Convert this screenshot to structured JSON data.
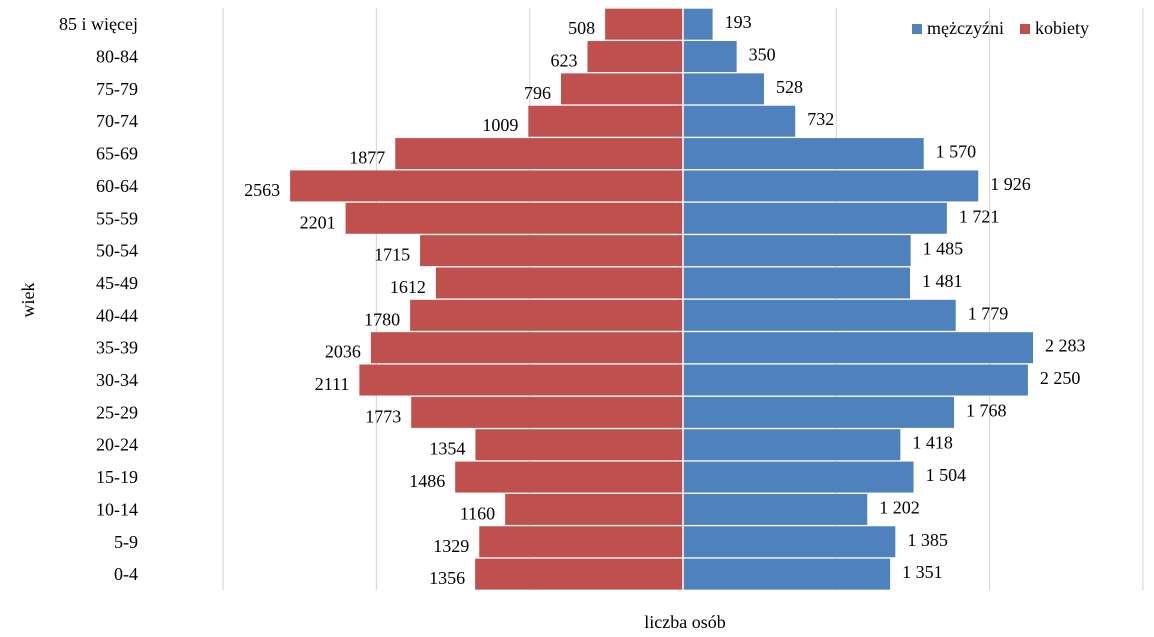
{
  "chart_data": {
    "type": "bar",
    "orientation": "horizontal",
    "layout": "population-pyramid",
    "xlabel": "liczba osób",
    "ylabel": "wiek",
    "xlim": [
      -3000,
      3000
    ],
    "grid": true,
    "legend_position": "top-right",
    "categories": [
      "0-4",
      "5-9",
      "10-14",
      "15-19",
      "20-24",
      "25-29",
      "30-34",
      "35-39",
      "40-44",
      "45-49",
      "50-54",
      "55-59",
      "60-64",
      "65-69",
      "70-74",
      "75-79",
      "80-84",
      "85 i więcej"
    ],
    "series": [
      {
        "name": "mężczyźni",
        "color": "#4f81bd",
        "side": "right",
        "values": [
          1351,
          1385,
          1202,
          1504,
          1418,
          1768,
          2250,
          2283,
          1779,
          1481,
          1485,
          1721,
          1926,
          1570,
          732,
          528,
          350,
          193
        ],
        "labels": [
          "1 351",
          "1 385",
          "1 202",
          "1 504",
          "1 418",
          "1 768",
          "2 250",
          "2 283",
          "1 779",
          "1 481",
          "1 485",
          "1 721",
          "1 926",
          "1 570",
          "732",
          "528",
          "350",
          "193"
        ]
      },
      {
        "name": "kobiety",
        "color": "#c0504d",
        "side": "left",
        "values": [
          1356,
          1329,
          1160,
          1486,
          1354,
          1773,
          2111,
          2036,
          1780,
          1612,
          1715,
          2201,
          2563,
          1877,
          1009,
          796,
          623,
          508
        ],
        "labels": [
          "1356",
          "1329",
          "1160",
          "1486",
          "1354",
          "1773",
          "2111",
          "2036",
          "1780",
          "1612",
          "1715",
          "2201",
          "2563",
          "1877",
          "1009",
          "796",
          "623",
          "508"
        ]
      }
    ]
  }
}
